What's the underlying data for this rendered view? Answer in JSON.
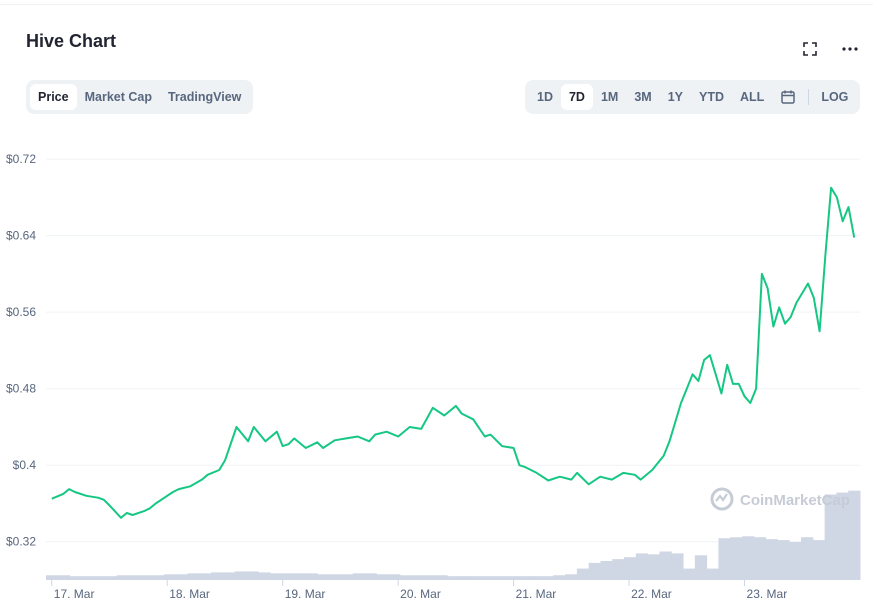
{
  "title": "Hive Chart",
  "icons": {
    "fullscreen": "fullscreen-icon",
    "more": "more-horizontal-icon",
    "calendar": "calendar-icon",
    "watermark": "coinmarketcap-logo-icon"
  },
  "view_tabs": [
    {
      "label": "Price",
      "active": true
    },
    {
      "label": "Market Cap",
      "active": false
    },
    {
      "label": "TradingView",
      "active": false
    }
  ],
  "range_tabs": [
    {
      "label": "1D",
      "active": false
    },
    {
      "label": "7D",
      "active": true
    },
    {
      "label": "1M",
      "active": false
    },
    {
      "label": "3M",
      "active": false
    },
    {
      "label": "1Y",
      "active": false
    },
    {
      "label": "YTD",
      "active": false
    },
    {
      "label": "ALL",
      "active": false
    }
  ],
  "log_label": "LOG",
  "watermark": "CoinMarketCap",
  "colors": {
    "line": "#16c784",
    "volume": "#cfd6e4",
    "grid": "#eff2f5",
    "text": "#58667e"
  },
  "chart_data": {
    "type": "line",
    "title": "Hive Chart",
    "xlabel": "",
    "ylabel": "",
    "grid": true,
    "legend": "none",
    "x_tick_labels": [
      "17. Mar",
      "18. Mar",
      "19. Mar",
      "20. Mar",
      "21. Mar",
      "22. Mar",
      "23. Mar"
    ],
    "y_tick_labels": [
      "$0.32",
      "$0.4",
      "$0.48",
      "$0.56",
      "$0.64",
      "$0.72"
    ],
    "y_ticks": [
      0.32,
      0.4,
      0.48,
      0.56,
      0.64,
      0.72
    ],
    "ylim": [
      0.28,
      0.74
    ],
    "x_unit": "days since 17 Mar 00:00",
    "xlim": [
      -0.05,
      7.0
    ],
    "series": [
      {
        "kind": "price",
        "x": [
          0.0,
          0.1,
          0.15,
          0.2,
          0.3,
          0.4,
          0.45,
          0.5,
          0.6,
          0.65,
          0.7,
          0.8,
          0.85,
          0.9,
          1.0,
          1.05,
          1.1,
          1.2,
          1.3,
          1.35,
          1.45,
          1.5,
          1.6,
          1.7,
          1.75,
          1.85,
          1.95,
          2.0,
          2.05,
          2.1,
          2.2,
          2.3,
          2.35,
          2.45,
          2.55,
          2.65,
          2.75,
          2.8,
          2.9,
          3.0,
          3.1,
          3.2,
          3.3,
          3.4,
          3.5,
          3.55,
          3.65,
          3.75,
          3.8,
          3.9,
          4.0,
          4.05,
          4.1,
          4.2,
          4.3,
          4.4,
          4.5,
          4.55,
          4.65,
          4.75,
          4.85,
          4.95,
          5.05,
          5.1,
          5.2,
          5.3,
          5.35,
          5.45,
          5.5,
          5.55,
          5.6,
          5.65,
          5.7,
          5.75,
          5.8,
          5.85,
          5.9,
          5.95,
          6.0,
          6.05,
          6.1,
          6.15,
          6.2,
          6.25,
          6.3,
          6.35,
          6.4,
          6.45,
          6.5,
          6.55,
          6.6,
          6.65,
          6.7,
          6.75,
          6.8,
          6.85,
          6.9,
          6.95
        ],
        "y": [
          0.365,
          0.37,
          0.375,
          0.372,
          0.368,
          0.366,
          0.364,
          0.358,
          0.345,
          0.35,
          0.348,
          0.352,
          0.355,
          0.36,
          0.368,
          0.372,
          0.375,
          0.378,
          0.385,
          0.39,
          0.395,
          0.405,
          0.44,
          0.425,
          0.44,
          0.425,
          0.435,
          0.42,
          0.422,
          0.428,
          0.418,
          0.424,
          0.418,
          0.426,
          0.428,
          0.43,
          0.425,
          0.432,
          0.435,
          0.43,
          0.44,
          0.438,
          0.46,
          0.452,
          0.462,
          0.454,
          0.448,
          0.43,
          0.432,
          0.42,
          0.418,
          0.4,
          0.398,
          0.392,
          0.384,
          0.388,
          0.385,
          0.392,
          0.38,
          0.388,
          0.385,
          0.392,
          0.39,
          0.385,
          0.395,
          0.41,
          0.425,
          0.465,
          0.48,
          0.495,
          0.488,
          0.51,
          0.515,
          0.495,
          0.475,
          0.505,
          0.485,
          0.485,
          0.472,
          0.465,
          0.48,
          0.6,
          0.585,
          0.545,
          0.565,
          0.548,
          0.555,
          0.57,
          0.58,
          0.59,
          0.575,
          0.54,
          0.62,
          0.69,
          0.68,
          0.655,
          0.67,
          0.638
        ]
      }
    ],
    "volume_relative": [
      0.05,
      0.05,
      0.04,
      0.04,
      0.04,
      0.04,
      0.05,
      0.05,
      0.05,
      0.05,
      0.06,
      0.06,
      0.07,
      0.07,
      0.08,
      0.08,
      0.09,
      0.09,
      0.08,
      0.07,
      0.07,
      0.07,
      0.07,
      0.06,
      0.06,
      0.06,
      0.07,
      0.07,
      0.06,
      0.06,
      0.05,
      0.05,
      0.05,
      0.05,
      0.04,
      0.04,
      0.04,
      0.04,
      0.04,
      0.04,
      0.04,
      0.04,
      0.04,
      0.05,
      0.06,
      0.12,
      0.18,
      0.2,
      0.22,
      0.24,
      0.28,
      0.27,
      0.3,
      0.28,
      0.12,
      0.26,
      0.12,
      0.44,
      0.45,
      0.46,
      0.45,
      0.43,
      0.42,
      0.4,
      0.45,
      0.42,
      0.9,
      0.92,
      0.94
    ]
  }
}
